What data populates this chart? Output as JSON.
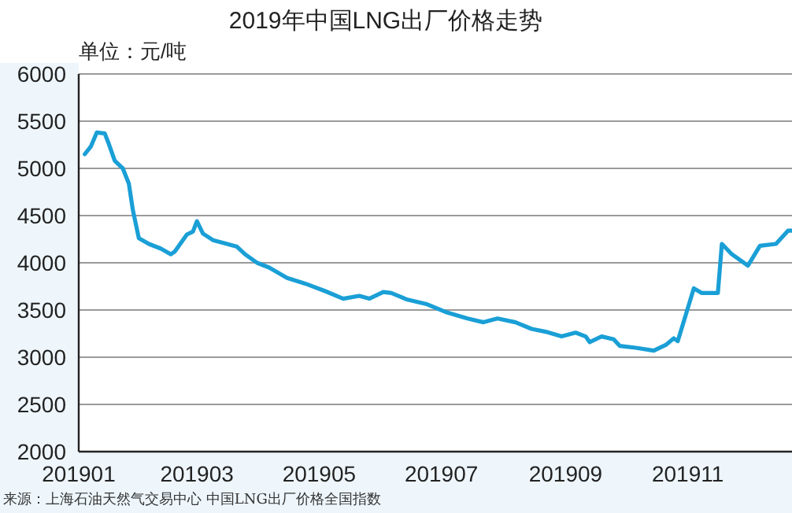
{
  "chart_data": {
    "type": "line",
    "title": "2019年中国LNG出厂价格走势",
    "ylabel": "单位：元/吨",
    "annotations": [
      "来源：上海石油天然气交易中心 中国LNG出厂价格全国指数"
    ],
    "x": [
      "2019-01-04",
      "2019-01-07",
      "2019-01-10",
      "2019-01-14",
      "2019-01-16",
      "2019-01-19",
      "2019-01-23",
      "2019-01-26",
      "2019-01-28",
      "2019-01-31",
      "2019-02-05",
      "2019-02-11",
      "2019-02-16",
      "2019-02-18",
      "2019-02-24",
      "2019-02-27",
      "2019-03-01",
      "2019-03-04",
      "2019-03-09",
      "2019-03-16",
      "2019-03-21",
      "2019-03-25",
      "2019-03-31",
      "2019-04-06",
      "2019-04-15",
      "2019-04-24",
      "2019-05-04",
      "2019-05-13",
      "2019-05-21",
      "2019-05-26",
      "2019-06-02",
      "2019-06-06",
      "2019-06-14",
      "2019-06-24",
      "2019-07-03",
      "2019-07-14",
      "2019-07-22",
      "2019-07-29",
      "2019-08-07",
      "2019-08-15",
      "2019-08-22",
      "2019-08-30",
      "2019-09-06",
      "2019-09-11",
      "2019-09-13",
      "2019-09-19",
      "2019-09-25",
      "2019-09-28",
      "2019-10-06",
      "2019-10-15",
      "2019-10-21",
      "2019-10-25",
      "2019-10-27",
      "2019-10-31",
      "2019-11-04",
      "2019-11-08",
      "2019-11-16",
      "2019-11-18",
      "2019-11-23",
      "2019-12-01",
      "2019-12-07",
      "2019-12-15",
      "2019-12-21",
      "2019-12-23"
    ],
    "series": [
      {
        "color": "#1a9fd6",
        "values": [
          5150,
          5230,
          5380,
          5370,
          5260,
          5080,
          5000,
          4840,
          4560,
          4260,
          4200,
          4150,
          4090,
          4120,
          4300,
          4330,
          4440,
          4310,
          4240,
          4200,
          4170,
          4090,
          4000,
          3950,
          3840,
          3780,
          3700,
          3620,
          3650,
          3620,
          3690,
          3680,
          3610,
          3560,
          3480,
          3410,
          3370,
          3410,
          3370,
          3300,
          3270,
          3220,
          3260,
          3220,
          3160,
          3220,
          3190,
          3120,
          3100,
          3070,
          3130,
          3200,
          3170,
          3450,
          3730,
          3680,
          3680,
          4200,
          4090,
          3970,
          4180,
          4200,
          4340,
          4340
        ]
      }
    ],
    "xlim": [
      "2019-01-01",
      "2019-12-23"
    ],
    "xticks": [
      {
        "value": "2019-01",
        "label": "201901"
      },
      {
        "value": "2019-03",
        "label": "201903"
      },
      {
        "value": "2019-05",
        "label": "201905"
      },
      {
        "value": "2019-07",
        "label": "201907"
      },
      {
        "value": "2019-09",
        "label": "201909"
      },
      {
        "value": "2019-11",
        "label": "201911"
      }
    ],
    "ylim": [
      2000,
      6000
    ],
    "yticks": [
      2000,
      2500,
      3000,
      3500,
      4000,
      4500,
      5000,
      5500,
      6000
    ],
    "grid": "y",
    "marker": "none",
    "line_style": "solid"
  }
}
